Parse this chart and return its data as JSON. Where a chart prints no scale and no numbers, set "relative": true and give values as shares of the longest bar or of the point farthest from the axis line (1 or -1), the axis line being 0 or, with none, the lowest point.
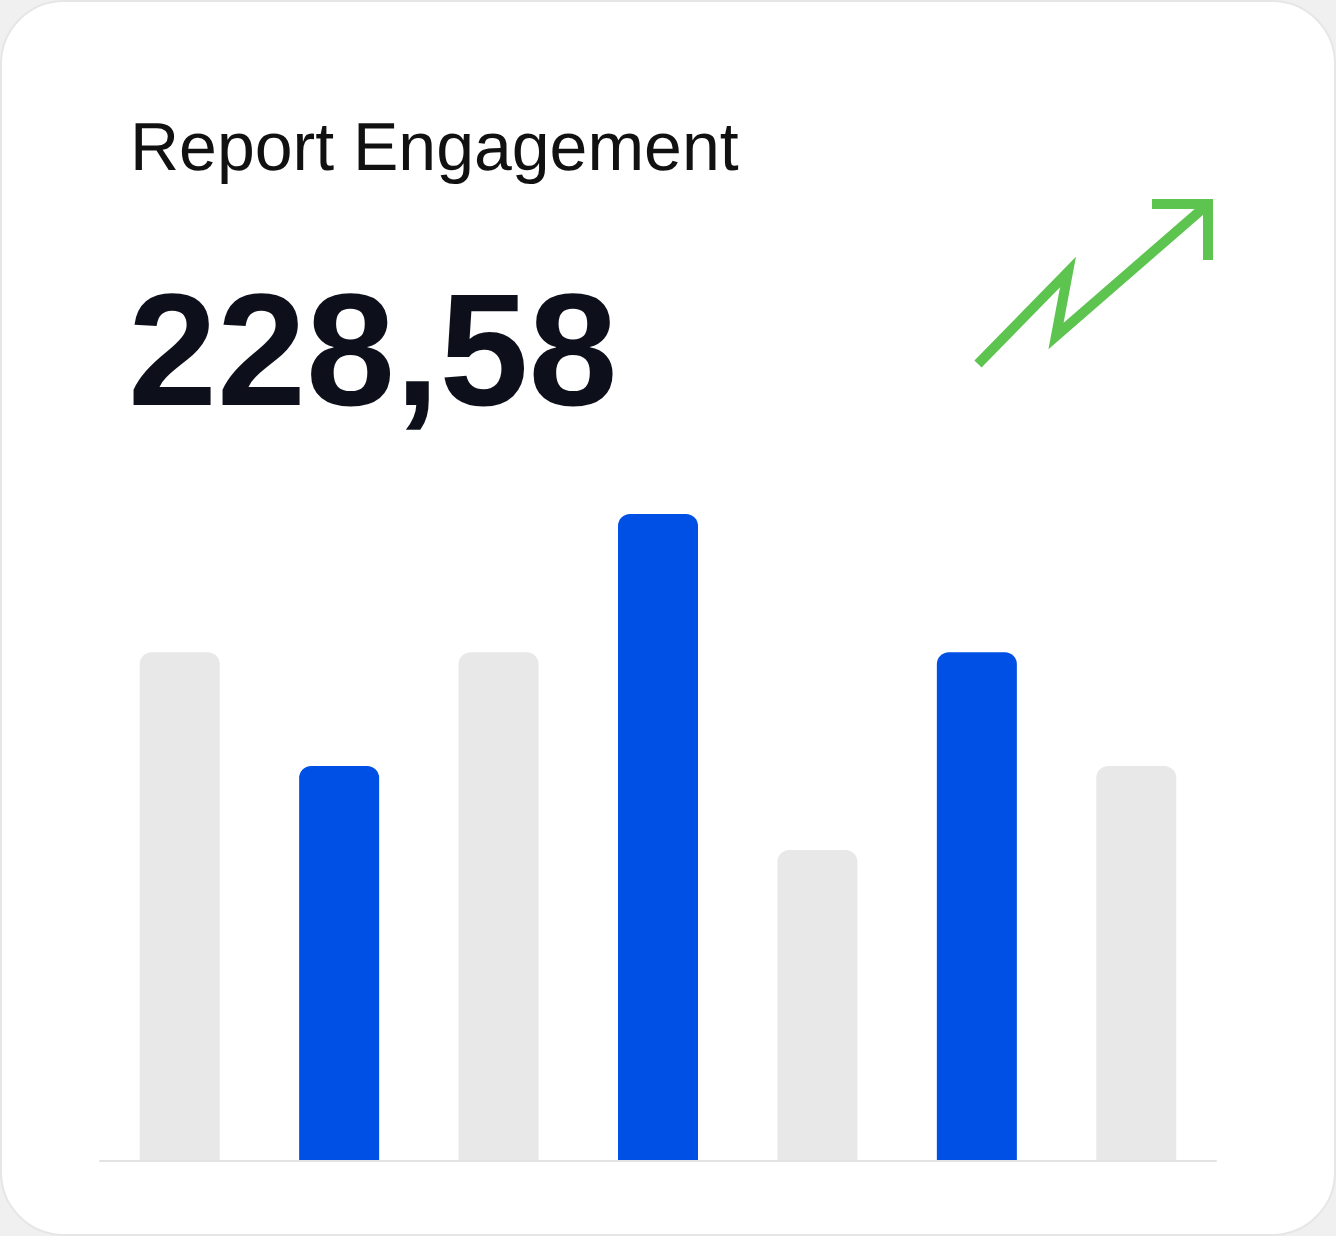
{
  "chart_data": {
    "type": "bar",
    "title": "Report Engagement",
    "annotations": [
      "228,58"
    ],
    "categories": [
      null,
      null,
      null,
      null,
      null,
      null,
      null
    ],
    "values": [
      0.786,
      0.61,
      0.786,
      1,
      0.48,
      0.786,
      0.61
    ],
    "colors": [
      "#e8e8e8",
      "#0050e6",
      "#e8e8e8",
      "#0050e6",
      "#e8e8e8",
      "#0050e6",
      "#e8e8e8"
    ],
    "relative": true
  }
}
